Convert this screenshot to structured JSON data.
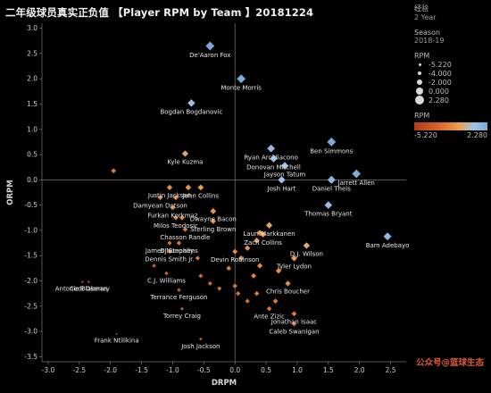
{
  "title": "二年级球员真实正负值 【Player RPM by Team 】20181224",
  "legend": {
    "experience_label": "经验",
    "experience_value": "2 Year",
    "season_label": "Season",
    "season_value": "2018-19",
    "size_title": "RPM",
    "size_values": [
      "-5.220",
      "-4.000",
      "-2.000",
      "0.000",
      "2.280"
    ],
    "color_title": "RPM",
    "color_min": "-5.220",
    "color_max": "2.280"
  },
  "watermark": "公众号@篮球生态",
  "colors": {
    "background": "#000000",
    "high": "#7aa7d9",
    "mid": "#f0a04a",
    "low": "#d9682c",
    "lowest": "#b33a1a"
  },
  "chart_data": {
    "type": "scatter",
    "title": "二年级球员真实正负值 【Player RPM by Team 】20181224",
    "xlabel": "DRPM",
    "ylabel": "ORPM",
    "xlim": [
      -3.1,
      2.75
    ],
    "ylim": [
      -3.6,
      3.1
    ],
    "xticks": [
      "-3.0",
      "-2.5",
      "-2.0",
      "-1.5",
      "-1.0",
      "-0.5",
      "0.0",
      "0.5",
      "1.0",
      "1.5",
      "2.0",
      "2.5"
    ],
    "yticks": [
      "3.0",
      "2.5",
      "2.0",
      "1.5",
      "1.0",
      "0.5",
      "0.0",
      "-0.5",
      "-1.0",
      "-1.5",
      "-2.0",
      "-2.5",
      "-3.0",
      "-3.5"
    ],
    "reference_lines": {
      "x": 0,
      "y": 0
    },
    "grid": false,
    "points": [
      {
        "name": "De'Aaron Fox",
        "x": -0.4,
        "y": 2.65
      },
      {
        "name": "Monte Morris",
        "x": 0.1,
        "y": 2.0
      },
      {
        "name": "Bogdan Bogdanovic",
        "x": -0.7,
        "y": 1.52
      },
      {
        "name": "Ryan Arcidiacono",
        "x": 0.58,
        "y": 0.62
      },
      {
        "name": "Ben Simmons",
        "x": 1.55,
        "y": 0.75
      },
      {
        "name": "Kyle Kuzma",
        "x": -0.8,
        "y": 0.52
      },
      {
        "name": "Donovan Mitchell",
        "x": 0.62,
        "y": 0.42
      },
      {
        "name": "Jayson Tatum",
        "x": 0.8,
        "y": 0.28
      },
      {
        "name": "Jarrett Allen",
        "x": 1.95,
        "y": 0.12
      },
      {
        "name": "Josh Hart",
        "x": 0.75,
        "y": 0.0
      },
      {
        "name": "Daniel Theis",
        "x": 1.55,
        "y": 0.0
      },
      {
        "name": "Justin Jackson",
        "x": -1.05,
        "y": -0.15
      },
      {
        "name": "John Collins",
        "x": -0.55,
        "y": -0.15
      },
      {
        "name": "Damyean Dotson",
        "x": -1.2,
        "y": -0.35
      },
      {
        "name": "Furkan Korkmaz",
        "x": -1.0,
        "y": -0.55
      },
      {
        "name": "Thomas Bryant",
        "x": 1.5,
        "y": -0.5
      },
      {
        "name": "Dwayne Bacon",
        "x": -0.35,
        "y": -0.62
      },
      {
        "name": "Milos Teodosic",
        "x": -0.95,
        "y": -0.75
      },
      {
        "name": "Sterling Brown",
        "x": -0.35,
        "y": -0.82
      },
      {
        "name": "Lauri Markkanen",
        "x": 0.55,
        "y": -0.9
      },
      {
        "name": "Chasson Randle",
        "x": -0.8,
        "y": -0.98
      },
      {
        "name": "Zach Collins",
        "x": 0.45,
        "y": -1.08
      },
      {
        "name": "Bam Adebayo",
        "x": 2.45,
        "y": -1.12
      },
      {
        "name": "James Nunnally",
        "x": -1.05,
        "y": -1.25
      },
      {
        "name": "DJ Stephens",
        "x": -0.9,
        "y": -1.25
      },
      {
        "name": "D.J. Wilson",
        "x": 1.15,
        "y": -1.3
      },
      {
        "name": "Dennis Smith Jr.",
        "x": -1.05,
        "y": -1.42
      },
      {
        "name": "Devin Robinson",
        "x": 0.0,
        "y": -1.42
      },
      {
        "name": "Tyler Lydon",
        "x": 0.95,
        "y": -1.55
      },
      {
        "name": "C.J. Williams",
        "x": -1.1,
        "y": -1.85
      },
      {
        "name": "Cedi Osman",
        "x": -2.35,
        "y": -2.02
      },
      {
        "name": "Antonio Blakeney",
        "x": -2.45,
        "y": -2.02
      },
      {
        "name": "Terrance Ferguson",
        "x": -0.9,
        "y": -2.18
      },
      {
        "name": "Chris Boucher",
        "x": 0.85,
        "y": -2.05
      },
      {
        "name": "Torrey Craig",
        "x": -0.85,
        "y": -2.55
      },
      {
        "name": "Ante Zizic",
        "x": 0.55,
        "y": -2.55
      },
      {
        "name": "Jonathan Isaac",
        "x": 0.95,
        "y": -2.65
      },
      {
        "name": "Caleb Swanigan",
        "x": 0.95,
        "y": -2.85
      },
      {
        "name": "Frank Ntilikina",
        "x": -1.9,
        "y": -3.05
      },
      {
        "name": "Josh Jackson",
        "x": -0.55,
        "y": -3.15
      },
      {
        "name": "",
        "x": -1.95,
        "y": 0.18
      },
      {
        "name": "",
        "x": -0.75,
        "y": -0.15
      },
      {
        "name": "",
        "x": -0.95,
        "y": -0.35
      },
      {
        "name": "",
        "x": -0.35,
        "y": -0.62
      },
      {
        "name": "",
        "x": -0.85,
        "y": -0.75
      },
      {
        "name": "",
        "x": 0.4,
        "y": -1.05
      },
      {
        "name": "",
        "x": 0.35,
        "y": -1.2
      },
      {
        "name": "",
        "x": 0.2,
        "y": -1.35
      },
      {
        "name": "",
        "x": 0.1,
        "y": -1.55
      },
      {
        "name": "",
        "x": -0.6,
        "y": -1.55
      },
      {
        "name": "",
        "x": -1.3,
        "y": -1.7
      },
      {
        "name": "",
        "x": 0.4,
        "y": -1.7
      },
      {
        "name": "",
        "x": -0.1,
        "y": -1.75
      },
      {
        "name": "",
        "x": -0.55,
        "y": -1.9
      },
      {
        "name": "",
        "x": 0.7,
        "y": -1.8
      },
      {
        "name": "",
        "x": 0.3,
        "y": -1.9
      },
      {
        "name": "",
        "x": -0.4,
        "y": -2.05
      },
      {
        "name": "",
        "x": 0.0,
        "y": -2.1
      },
      {
        "name": "",
        "x": -0.25,
        "y": -2.15
      },
      {
        "name": "",
        "x": 0.05,
        "y": -2.25
      },
      {
        "name": "",
        "x": 0.2,
        "y": -2.4
      },
      {
        "name": "",
        "x": 0.35,
        "y": -2.25
      },
      {
        "name": "",
        "x": 0.65,
        "y": -2.4
      }
    ]
  }
}
